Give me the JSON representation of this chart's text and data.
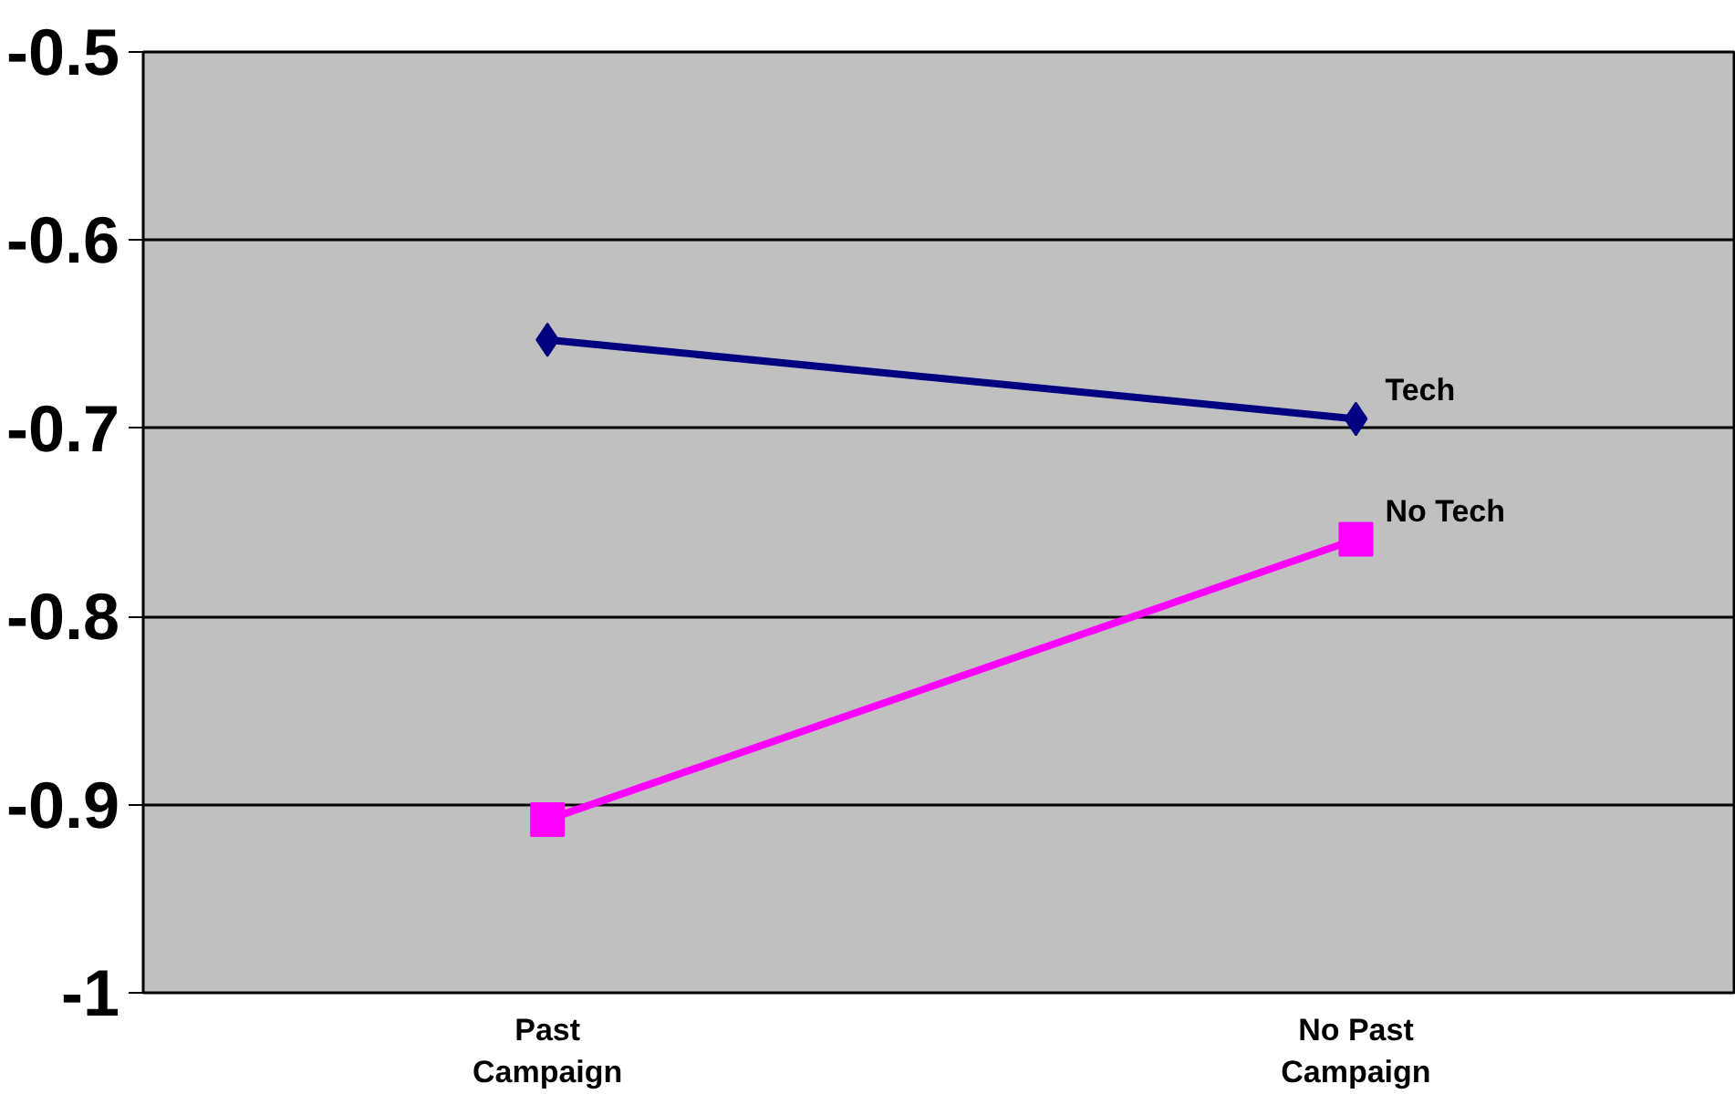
{
  "chart_data": {
    "type": "line",
    "categories": [
      "Past\nCampaign",
      "No Past\nCampaign"
    ],
    "series": [
      {
        "name": "Tech",
        "color": "#000080",
        "marker": "diamond",
        "values": [
          -0.653,
          -0.695
        ]
      },
      {
        "name": "No Tech",
        "color": "#ff00ff",
        "marker": "square",
        "values": [
          -0.908,
          -0.759
        ]
      }
    ],
    "ylim": [
      -1,
      -0.5
    ],
    "yticks": [
      -1,
      -0.9,
      -0.8,
      -0.7,
      -0.6,
      -0.5
    ],
    "grid": "y",
    "line_style": "solid"
  }
}
